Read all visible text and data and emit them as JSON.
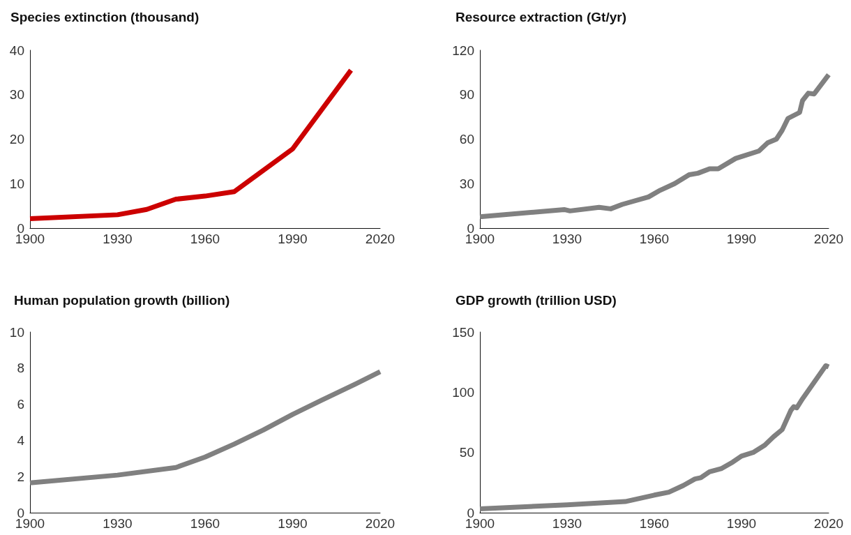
{
  "chart_data": [
    {
      "type": "line",
      "title": "Species extinction (thousand)",
      "x": [
        1900,
        1930,
        1940,
        1950,
        1960,
        1970,
        1990,
        2010
      ],
      "series": [
        {
          "color": "#cc0000",
          "values": [
            2.1,
            3.0,
            4.2,
            6.5,
            7.2,
            8.2,
            17.8,
            35.5
          ]
        }
      ],
      "xlim": [
        1900,
        2020
      ],
      "xticks": [
        1900,
        1930,
        1960,
        1990,
        2020
      ],
      "ylim": [
        0,
        40
      ],
      "yticks": [
        0,
        10,
        20,
        30,
        40
      ],
      "grid": false,
      "marker": "none",
      "line_style": "solid"
    },
    {
      "type": "line",
      "title": "Resource extraction (Gt/yr)",
      "x": [
        1900,
        1929,
        1931,
        1941,
        1945,
        1949,
        1958,
        1962,
        1967,
        1972,
        1975,
        1979,
        1982,
        1988,
        1996,
        1999,
        2002,
        2004,
        2006,
        2010,
        2011,
        2013,
        2015,
        2020
      ],
      "series": [
        {
          "color": "#808080",
          "values": [
            7.6,
            12.5,
            11.6,
            14,
            13,
            16,
            21,
            25.5,
            30,
            36,
            37,
            40,
            40,
            47,
            52,
            57.5,
            60,
            66,
            74,
            78,
            86,
            91,
            90.5,
            103.5
          ]
        }
      ],
      "xlim": [
        1900,
        2020
      ],
      "xticks": [
        1900,
        1930,
        1960,
        1990,
        2020
      ],
      "ylim": [
        0,
        120
      ],
      "yticks": [
        0,
        30,
        60,
        90,
        120
      ],
      "grid": false,
      "marker": "none",
      "line_style": "solid"
    },
    {
      "type": "line",
      "title": "Human population growth (billion)",
      "x": [
        1900,
        1930,
        1950,
        1960,
        1970,
        1980,
        1990,
        2000,
        2010,
        2020
      ],
      "series": [
        {
          "color": "#808080",
          "values": [
            1.65,
            2.08,
            2.5,
            3.08,
            3.8,
            4.58,
            5.44,
            6.23,
            7.0,
            7.8
          ]
        }
      ],
      "xlim": [
        1900,
        2020
      ],
      "xticks": [
        1900,
        1930,
        1960,
        1990,
        2020
      ],
      "ylim": [
        0,
        10
      ],
      "yticks": [
        0,
        2,
        4,
        6,
        8,
        10
      ],
      "grid": false,
      "marker": "none",
      "line_style": "solid"
    },
    {
      "type": "line",
      "title": "GDP growth (trillion USD)",
      "x": [
        1900,
        1930,
        1950,
        1960,
        1965,
        1970,
        1974,
        1976,
        1979,
        1983,
        1987,
        1990,
        1994,
        1998,
        2001,
        2004,
        2007,
        2008,
        2009,
        2011,
        2019,
        2020
      ],
      "series": [
        {
          "color": "#808080",
          "values": [
            3.2,
            6.5,
            9.2,
            14.6,
            17,
            22.6,
            28,
            29,
            34,
            36.5,
            42,
            47,
            50,
            56,
            63,
            69,
            85,
            88,
            87,
            94.6,
            122,
            121
          ]
        }
      ],
      "xlim": [
        1900,
        2020
      ],
      "xticks": [
        1900,
        1930,
        1960,
        1990,
        2020
      ],
      "ylim": [
        0,
        150
      ],
      "yticks": [
        0,
        50,
        100,
        150
      ],
      "grid": false,
      "marker": "none",
      "line_style": "solid"
    }
  ]
}
